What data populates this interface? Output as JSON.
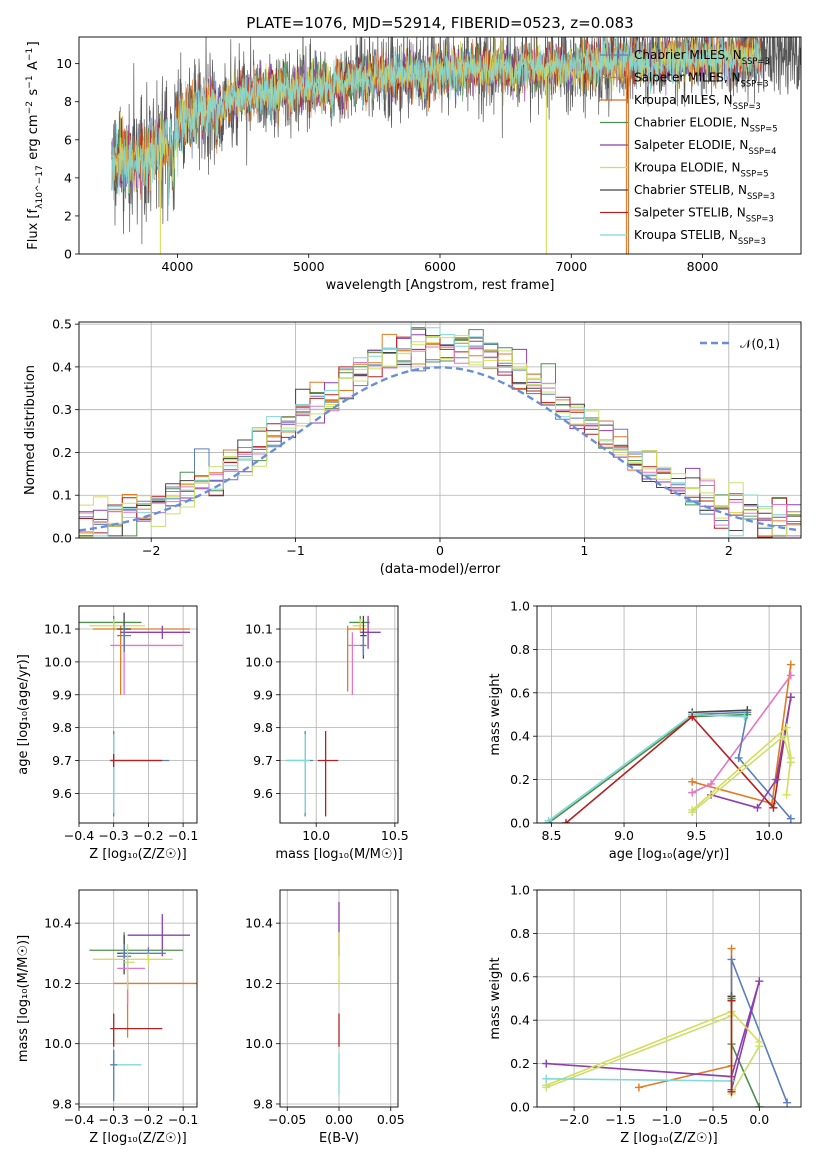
{
  "chart_data": [
    {
      "id": "spectrum",
      "type": "line",
      "title": "PLATE=1076, MJD=52914, FIBERID=0523, z=0.083",
      "xlabel": "wavelength [Angstrom, rest frame]",
      "ylabel": "Flux [f_λ10^−17 erg cm^−2 s^−1 A^−1]",
      "xlim": [
        3250,
        8750
      ],
      "ylim": [
        0,
        11.4
      ],
      "xticks": [
        4000,
        5000,
        6000,
        7000,
        8000
      ],
      "yticks": [
        0,
        2,
        4,
        6,
        8,
        10
      ],
      "legend_position": "right",
      "series": [
        {
          "name": "Chabrier MILES, N_SSP=3",
          "color": "#5a7fbf"
        },
        {
          "name": "Salpeter MILES, N_SSP=3",
          "color": "#e07b26"
        },
        {
          "name": "Kroupa MILES, N_SSP=3",
          "color": "#d07030"
        },
        {
          "name": "Chabrier ELODIE, N_SSP=5",
          "color": "#4f8f4f"
        },
        {
          "name": "Salpeter ELODIE, N_SSP=4",
          "color": "#8e3fae"
        },
        {
          "name": "Kroupa ELODIE, N_SSP=5",
          "color": "#d8dc57"
        },
        {
          "name": "Chabrier STELIB, N_SSP=3",
          "color": "#444444"
        },
        {
          "name": "Salpeter STELIB, N_SSP=3",
          "color": "#b22222"
        },
        {
          "name": "Kroupa STELIB, N_SSP=3",
          "color": "#80d8d8"
        }
      ],
      "continuum": {
        "x": [
          3500,
          3650,
          3800,
          3950,
          4100,
          4300,
          4600,
          5000,
          5500,
          6000,
          6500,
          7000,
          7500,
          8000,
          8500
        ],
        "y": [
          5.0,
          4.8,
          5.3,
          6.3,
          7.6,
          7.9,
          8.5,
          8.8,
          9.3,
          9.6,
          9.8,
          9.9,
          10.1,
          10.3,
          10.4
        ]
      }
    },
    {
      "id": "residuals",
      "type": "line",
      "xlabel": "(data-model)/error",
      "ylabel": "Normed distribution",
      "xlim": [
        -2.5,
        2.5
      ],
      "ylim": [
        0,
        0.505
      ],
      "xticks": [
        -2,
        -1,
        0,
        1,
        2
      ],
      "yticks": [
        0.0,
        0.1,
        0.2,
        0.3,
        0.4,
        0.5
      ],
      "grid": true,
      "legend_position": "top-right",
      "reference": {
        "name": "𝒩(0,1)",
        "color": "#6a8fd8",
        "mean": 0,
        "sigma": 1
      }
    },
    {
      "id": "age-vs-Z",
      "type": "scatter",
      "xlabel": "Z [log₁₀(Z/Z☉)]",
      "ylabel": "age  [log₁₀(age/yr)]",
      "xlim": [
        -0.4,
        -0.06
      ],
      "ylim": [
        9.51,
        10.17
      ],
      "xticks": [
        -0.4,
        -0.3,
        -0.2,
        -0.1
      ],
      "yticks": [
        9.6,
        9.7,
        9.8,
        9.9,
        10.0,
        10.1
      ],
      "grid": true,
      "points": [
        {
          "x": -0.3,
          "y": 10.12,
          "xerr": [
            0.1,
            0.08
          ],
          "yerr": [
            0.02,
            0.02
          ],
          "color": "#4f8f4f"
        },
        {
          "x": -0.3,
          "y": 10.11,
          "xerr": [
            0.07,
            0.09
          ],
          "yerr": [
            0.02,
            0.02
          ],
          "color": "#d8dc57"
        },
        {
          "x": -0.28,
          "y": 10.1,
          "xerr": [
            0.08,
            0.2
          ],
          "yerr": [
            0.2,
            0.01
          ],
          "color": "#e07b26"
        },
        {
          "x": -0.16,
          "y": 10.09,
          "xerr": [
            0.12,
            0.08
          ],
          "yerr": [
            0.02,
            0.02
          ],
          "color": "#8e3fae"
        },
        {
          "x": -0.27,
          "y": 10.05,
          "xerr": [
            0.04,
            0.17
          ],
          "yerr": [
            0.15,
            0.05
          ],
          "color": "#e377c2"
        },
        {
          "x": -0.27,
          "y": 10.1,
          "xerr": [
            0.02,
            0.02
          ],
          "yerr": [
            0.07,
            0.05
          ],
          "color": "#444444"
        },
        {
          "x": -0.27,
          "y": 10.08,
          "xerr": [
            0.02,
            0.02
          ],
          "yerr": [
            0.05,
            0.03
          ],
          "color": "#5a7fbf"
        },
        {
          "x": -0.3,
          "y": 9.7,
          "xerr": [
            0.01,
            0.16
          ],
          "yerr": [
            0.17,
            0.09
          ],
          "color": "#5a7fbf"
        },
        {
          "x": -0.3,
          "y": 9.7,
          "xerr": [
            0.01,
            0.11
          ],
          "yerr": [
            0.16,
            0.08
          ],
          "color": "#80d8d8"
        },
        {
          "x": -0.3,
          "y": 9.7,
          "xerr": [
            0.01,
            0.14
          ],
          "yerr": [
            0.02,
            0.02
          ],
          "color": "#b22222"
        }
      ]
    },
    {
      "id": "age-vs-mass",
      "type": "scatter",
      "xlabel": "mass [log₁₀(M/M☉)]",
      "ylabel": "",
      "xlim": [
        9.77,
        10.52
      ],
      "ylim": [
        9.51,
        10.17
      ],
      "xticks": [
        10.0,
        10.5
      ],
      "yticks": [
        9.6,
        9.7,
        9.8,
        9.9,
        10.0,
        10.1
      ],
      "grid": true,
      "points": [
        {
          "x": 10.28,
          "y": 10.12,
          "xerr": [
            0.07,
            0.06
          ],
          "yerr": [
            0.02,
            0.02
          ],
          "color": "#4f8f4f"
        },
        {
          "x": 10.28,
          "y": 10.11,
          "xerr": [
            0.05,
            0.04
          ],
          "yerr": [
            0.02,
            0.02
          ],
          "color": "#d8dc57"
        },
        {
          "x": 10.2,
          "y": 10.1,
          "xerr": [
            0.0,
            0.12
          ],
          "yerr": [
            0.19,
            0.01
          ],
          "color": "#e07b26"
        },
        {
          "x": 10.33,
          "y": 10.09,
          "xerr": [
            0.05,
            0.08
          ],
          "yerr": [
            0.05,
            0.05
          ],
          "color": "#8e3fae"
        },
        {
          "x": 10.23,
          "y": 10.05,
          "xerr": [
            0.03,
            0.06
          ],
          "yerr": [
            0.15,
            0.04
          ],
          "color": "#e377c2"
        },
        {
          "x": 10.3,
          "y": 10.08,
          "xerr": [
            0.02,
            0.02
          ],
          "yerr": [
            0.07,
            0.06
          ],
          "color": "#444444"
        },
        {
          "x": 10.3,
          "y": 10.05,
          "xerr": [
            0.02,
            0.02
          ],
          "yerr": [
            0.03,
            0.03
          ],
          "color": "#5a7fbf"
        },
        {
          "x": 9.93,
          "y": 9.7,
          "xerr": [
            0.12,
            0.05
          ],
          "yerr": [
            0.17,
            0.09
          ],
          "color": "#5a7fbf"
        },
        {
          "x": 9.93,
          "y": 9.7,
          "xerr": [
            0.12,
            0.03
          ],
          "yerr": [
            0.16,
            0.08
          ],
          "color": "#80d8d8"
        },
        {
          "x": 10.06,
          "y": 9.7,
          "xerr": [
            0.05,
            0.08
          ],
          "yerr": [
            0.17,
            0.09
          ],
          "color": "#b22222"
        }
      ]
    },
    {
      "id": "weight-vs-age",
      "type": "line",
      "xlabel": "age  [log₁₀(age/yr)]",
      "ylabel": "mass weight",
      "xlim": [
        8.4,
        10.22
      ],
      "ylim": [
        0,
        1.0
      ],
      "xticks": [
        8.5,
        9.0,
        9.5,
        10.0
      ],
      "yticks": [
        0.0,
        0.2,
        0.4,
        0.6,
        0.8,
        1.0
      ],
      "grid": true,
      "series": [
        {
          "color": "#e07b26",
          "x": [
            10.15,
            10.02,
            9.47
          ],
          "y": [
            0.73,
            0.09,
            0.19
          ]
        },
        {
          "color": "#e377c2",
          "x": [
            10.15,
            9.6,
            9.47
          ],
          "y": [
            0.68,
            0.18,
            0.14
          ]
        },
        {
          "color": "#5a7fbf",
          "x": [
            10.15,
            9.79,
            9.85,
            9.47
          ],
          "y": [
            0.02,
            0.3,
            0.51,
            0.5
          ]
        },
        {
          "color": "#444444",
          "x": [
            9.47,
            9.85
          ],
          "y": [
            0.51,
            0.52
          ]
        },
        {
          "color": "#4f8f4f",
          "x": [
            8.48,
            9.47,
            9.85
          ],
          "y": [
            0.0,
            0.49,
            0.5
          ]
        },
        {
          "color": "#80d8d8",
          "x": [
            8.48,
            9.47,
            9.83
          ],
          "y": [
            0.01,
            0.5,
            0.49
          ]
        },
        {
          "color": "#b22222",
          "x": [
            8.6,
            9.47,
            10.03,
            10.15
          ],
          "y": [
            0.0,
            0.49,
            0.07,
            0.58
          ]
        },
        {
          "color": "#8e3fae",
          "x": [
            9.6,
            9.92,
            10.05,
            10.15
          ],
          "y": [
            0.13,
            0.07,
            0.2,
            0.58
          ]
        },
        {
          "color": "#d8dc57",
          "x": [
            9.47,
            10.12,
            10.15,
            10.12
          ],
          "y": [
            0.06,
            0.44,
            0.3,
            0.13
          ]
        },
        {
          "color": "#c8e06e",
          "x": [
            9.47,
            10.1,
            10.15
          ],
          "y": [
            0.05,
            0.4,
            0.28
          ]
        }
      ]
    },
    {
      "id": "mass-vs-Z",
      "type": "scatter",
      "xlabel": "Z [log₁₀(Z/Z☉)]",
      "ylabel": "mass [log₁₀(M/M☉)]",
      "xlim": [
        -0.4,
        -0.06
      ],
      "ylim": [
        9.79,
        10.51
      ],
      "xticks": [
        -0.4,
        -0.3,
        -0.2,
        -0.1
      ],
      "yticks": [
        9.8,
        10.0,
        10.2,
        10.4
      ],
      "grid": true,
      "points": [
        {
          "x": -0.16,
          "y": 10.36,
          "xerr": [
            0.1,
            0.08
          ],
          "yerr": [
            0.07,
            0.07
          ],
          "color": "#8e3fae"
        },
        {
          "x": -0.27,
          "y": 10.31,
          "xerr": [
            0.1,
            0.17
          ],
          "yerr": [
            0.06,
            0.06
          ],
          "color": "#4f8f4f"
        },
        {
          "x": -0.27,
          "y": 10.3,
          "xerr": [
            0.02,
            0.02
          ],
          "yerr": [
            0.07,
            0.06
          ],
          "color": "#444444"
        },
        {
          "x": -0.27,
          "y": 10.29,
          "xerr": [
            0.02,
            0.02
          ],
          "yerr": [
            0.04,
            0.04
          ],
          "color": "#5a7fbf"
        },
        {
          "x": -0.2,
          "y": 10.3,
          "xerr": [
            0.08,
            0.05
          ],
          "yerr": [
            0.02,
            0.02
          ],
          "color": "#5a7fbf"
        },
        {
          "x": -0.2,
          "y": 10.28,
          "xerr": [
            0.16,
            0.07
          ],
          "yerr": [
            0.02,
            0.02
          ],
          "color": "#d8dc57"
        },
        {
          "x": -0.26,
          "y": 10.2,
          "xerr": [
            0.04,
            0.2
          ],
          "yerr": [
            0.18,
            0.01
          ],
          "color": "#e07b26"
        },
        {
          "x": -0.26,
          "y": 10.25,
          "xerr": [
            0.03,
            0.05
          ],
          "yerr": [
            0.12,
            0.04
          ],
          "color": "#e377c2"
        },
        {
          "x": -0.26,
          "y": 10.27,
          "xerr": [
            0.01,
            0.02
          ],
          "yerr": [
            0.09,
            0.06
          ],
          "color": "#c8e06e"
        },
        {
          "x": -0.3,
          "y": 10.05,
          "xerr": [
            0.01,
            0.14
          ],
          "yerr": [
            0.06,
            0.05
          ],
          "color": "#b22222"
        },
        {
          "x": -0.3,
          "y": 9.93,
          "xerr": [
            0.01,
            0.08
          ],
          "yerr": [
            0.1,
            0.04
          ],
          "color": "#80d8d8"
        },
        {
          "x": -0.3,
          "y": 9.93,
          "xerr": [
            0.01,
            0.01
          ],
          "yerr": [
            0.12,
            0.05
          ],
          "color": "#5a7fbf"
        }
      ]
    },
    {
      "id": "mass-vs-ebv",
      "type": "scatter",
      "xlabel": "E(B-V)",
      "ylabel": "",
      "xlim": [
        -0.057,
        0.057
      ],
      "ylim": [
        9.79,
        10.51
      ],
      "xticks": [
        -0.05,
        0.0,
        0.05
      ],
      "yticks": [
        9.8,
        10.0,
        10.2,
        10.4
      ],
      "grid": true,
      "points": [
        {
          "x": 0.0,
          "y": 10.36,
          "xerr": [
            0.0005,
            0.0005
          ],
          "yerr": [
            0.07,
            0.11
          ],
          "color": "#8e3fae"
        },
        {
          "x": 0.0,
          "y": 10.28,
          "xerr": [
            0.0005,
            0.0005
          ],
          "yerr": [
            0.09,
            0.09
          ],
          "color": "#d8dc57"
        },
        {
          "x": 0.0,
          "y": 10.05,
          "xerr": [
            0.0005,
            0.0005
          ],
          "yerr": [
            0.06,
            0.05
          ],
          "color": "#b22222"
        },
        {
          "x": 0.0,
          "y": 9.93,
          "xerr": [
            0.0005,
            0.0005
          ],
          "yerr": [
            0.1,
            0.04
          ],
          "color": "#80d8d8"
        }
      ]
    },
    {
      "id": "weight-vs-Z",
      "type": "line",
      "xlabel": "Z [log₁₀(Z/Z☉)]",
      "ylabel": "mass weight",
      "xlim": [
        -2.4,
        0.45
      ],
      "ylim": [
        0,
        1.0
      ],
      "xticks": [
        -2.0,
        -1.5,
        -1.0,
        -0.5,
        0.0
      ],
      "yticks": [
        0.0,
        0.2,
        0.4,
        0.6,
        0.8,
        1.0
      ],
      "grid": true,
      "series": [
        {
          "color": "#e07b26",
          "x": [
            -0.3,
            -0.3,
            -1.3
          ],
          "y": [
            0.73,
            0.19,
            0.09
          ]
        },
        {
          "color": "#5a7fbf",
          "x": [
            0.3,
            -0.3,
            -0.3
          ],
          "y": [
            0.02,
            0.68,
            0.5
          ]
        },
        {
          "color": "#444444",
          "x": [
            -0.3,
            -0.3
          ],
          "y": [
            0.51,
            0.49
          ]
        },
        {
          "color": "#4f8f4f",
          "x": [
            -0.3,
            -0.3,
            0.0
          ],
          "y": [
            0.5,
            0.29,
            0.0
          ]
        },
        {
          "color": "#8e3fae",
          "x": [
            -2.3,
            -0.3,
            0.0,
            -0.3
          ],
          "y": [
            0.2,
            0.14,
            0.58,
            0.08
          ]
        },
        {
          "color": "#d8dc57",
          "x": [
            -2.3,
            -0.3,
            0.0
          ],
          "y": [
            0.1,
            0.44,
            0.3
          ]
        },
        {
          "color": "#c8e06e",
          "x": [
            -2.3,
            -0.3,
            -0.3,
            0.0
          ],
          "y": [
            0.09,
            0.42,
            0.06,
            0.28
          ]
        },
        {
          "color": "#80d8d8",
          "x": [
            -2.3,
            -0.3
          ],
          "y": [
            0.13,
            0.12
          ]
        },
        {
          "color": "#b22222",
          "x": [
            -0.3,
            -0.3
          ],
          "y": [
            0.49,
            0.07
          ]
        }
      ]
    }
  ]
}
